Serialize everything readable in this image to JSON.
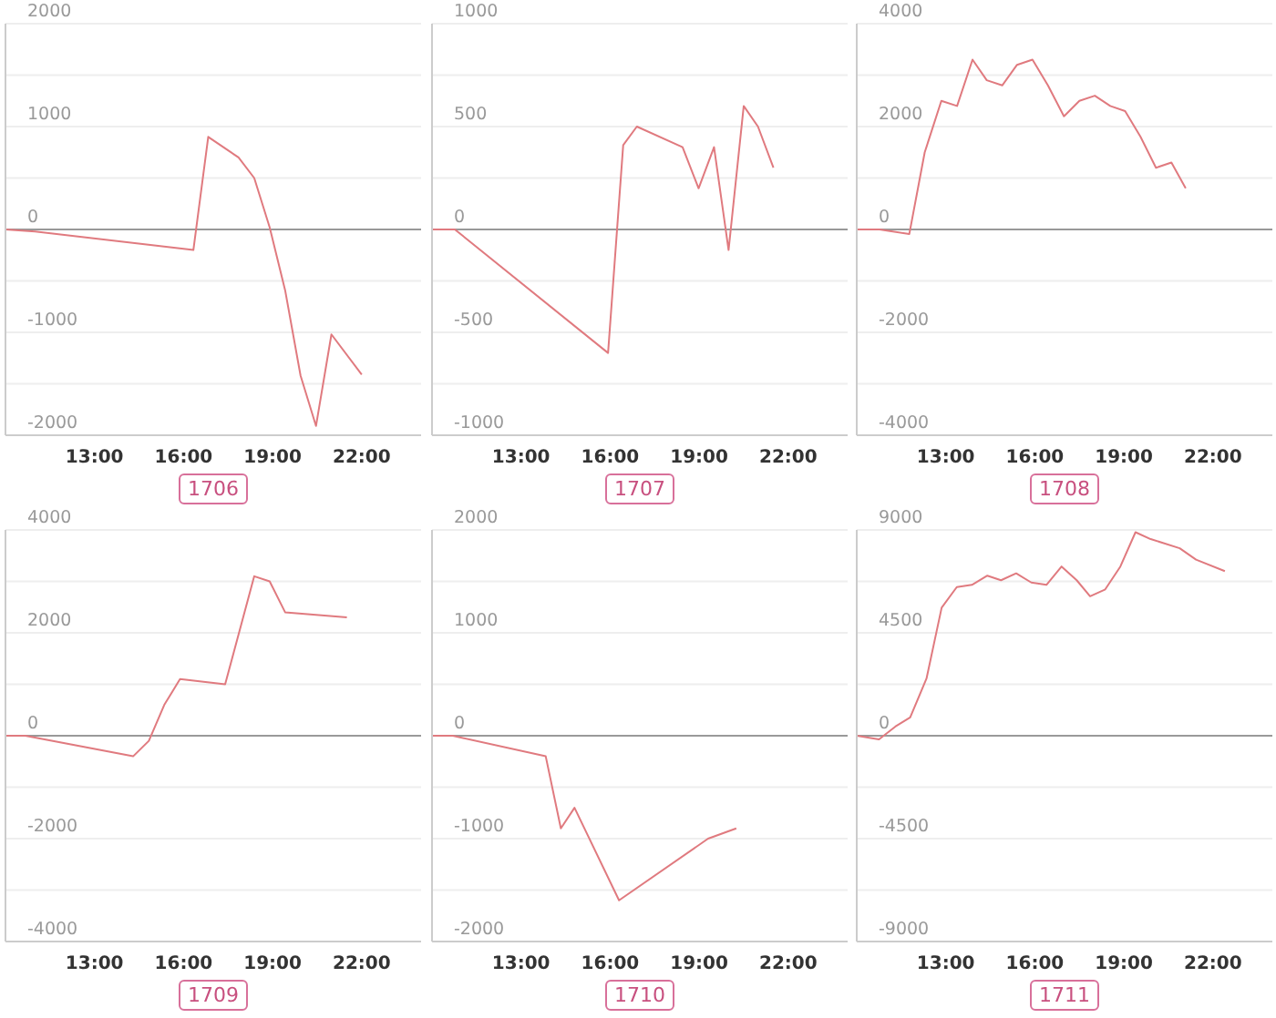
{
  "chart_data": [
    {
      "type": "line",
      "title": "1706",
      "color": "#e07a7f",
      "marker": "none",
      "grid": "y",
      "xlim": [
        10,
        24
      ],
      "xticks": [
        {
          "value": 13,
          "label": "13:00"
        },
        {
          "value": 16,
          "label": "16:00"
        },
        {
          "value": 19,
          "label": "19:00"
        },
        {
          "value": 22,
          "label": "22:00"
        }
      ],
      "ylim": [
        -2000,
        2000
      ],
      "yticks": [
        -2000,
        {
          "value": -1500,
          "label": null
        },
        -1000,
        {
          "value": -500,
          "label": null
        },
        0,
        {
          "value": 500,
          "label": null
        },
        1000,
        {
          "value": 1500,
          "label": null
        },
        2000
      ],
      "x": [
        10,
        11,
        16.33,
        16.83,
        17.85,
        18.38,
        18.9,
        19.42,
        19.94,
        20.46,
        20.98,
        22
      ],
      "values": [
        0,
        -20,
        -200,
        900,
        700,
        500,
        20,
        -590,
        -1420,
        -1910,
        -1020,
        -1410
      ]
    },
    {
      "type": "line",
      "title": "1707",
      "color": "#e07a7f",
      "marker": "none",
      "grid": "y",
      "xlim": [
        10,
        24
      ],
      "xticks": [
        {
          "value": 13,
          "label": "13:00"
        },
        {
          "value": 16,
          "label": "16:00"
        },
        {
          "value": 19,
          "label": "19:00"
        },
        {
          "value": 22,
          "label": "22:00"
        }
      ],
      "ylim": [
        -1000,
        1000
      ],
      "yticks": [
        -1000,
        {
          "value": -750,
          "label": null
        },
        -500,
        {
          "value": -250,
          "label": null
        },
        0,
        {
          "value": 250,
          "label": null
        },
        500,
        {
          "value": 750,
          "label": null
        },
        1000
      ],
      "x": [
        10,
        10.77,
        15.93,
        16.44,
        16.9,
        18.44,
        18.98,
        19.5,
        19.99,
        20.5,
        20.98,
        21.5
      ],
      "values": [
        0,
        0,
        -600,
        410,
        500,
        400,
        200,
        400,
        -100,
        600,
        500,
        300
      ]
    },
    {
      "type": "line",
      "title": "1708",
      "color": "#e07a7f",
      "marker": "none",
      "grid": "y",
      "xlim": [
        10,
        24
      ],
      "xticks": [
        {
          "value": 13,
          "label": "13:00"
        },
        {
          "value": 16,
          "label": "16:00"
        },
        {
          "value": 19,
          "label": "19:00"
        },
        {
          "value": 22,
          "label": "22:00"
        }
      ],
      "ylim": [
        -4000,
        4000
      ],
      "yticks": [
        -4000,
        {
          "value": -3000,
          "label": null
        },
        -2000,
        {
          "value": -1000,
          "label": null
        },
        0,
        {
          "value": 1000,
          "label": null
        },
        2000,
        {
          "value": 3000,
          "label": null
        },
        4000
      ],
      "x": [
        10,
        10.77,
        11.77,
        12.29,
        12.85,
        13.38,
        13.9,
        14.38,
        14.9,
        15.4,
        15.92,
        16.44,
        16.98,
        17.5,
        18.02,
        18.54,
        19.04,
        19.56,
        20.08,
        20.6,
        21.08
      ],
      "values": [
        0,
        0,
        -90,
        1500,
        2500,
        2400,
        3300,
        2900,
        2800,
        3200,
        3300,
        2800,
        2200,
        2500,
        2600,
        2400,
        2300,
        1800,
        1200,
        1300,
        800
      ]
    },
    {
      "type": "line",
      "title": "1709",
      "color": "#e07a7f",
      "marker": "none",
      "grid": "y",
      "xlim": [
        10,
        24
      ],
      "xticks": [
        {
          "value": 13,
          "label": "13:00"
        },
        {
          "value": 16,
          "label": "16:00"
        },
        {
          "value": 19,
          "label": "19:00"
        },
        {
          "value": 22,
          "label": "22:00"
        }
      ],
      "ylim": [
        -4000,
        4000
      ],
      "yticks": [
        -4000,
        {
          "value": -3000,
          "label": null
        },
        -2000,
        {
          "value": -1000,
          "label": null
        },
        0,
        {
          "value": 1000,
          "label": null
        },
        2000,
        {
          "value": 3000,
          "label": null
        },
        4000
      ],
      "x": [
        10,
        10.67,
        14.3,
        14.83,
        15.35,
        15.88,
        17.4,
        18.38,
        18.9,
        19.42,
        21.5
      ],
      "values": [
        0,
        0,
        -400,
        -100,
        600,
        1100,
        1000,
        3100,
        3000,
        2400,
        2300
      ]
    },
    {
      "type": "line",
      "title": "1710",
      "color": "#e07a7f",
      "marker": "none",
      "grid": "y",
      "xlim": [
        10,
        24
      ],
      "xticks": [
        {
          "value": 13,
          "label": "13:00"
        },
        {
          "value": 16,
          "label": "16:00"
        },
        {
          "value": 19,
          "label": "19:00"
        },
        {
          "value": 22,
          "label": "22:00"
        }
      ],
      "ylim": [
        -2000,
        2000
      ],
      "yticks": [
        -2000,
        {
          "value": -1500,
          "label": null
        },
        -1000,
        {
          "value": -500,
          "label": null
        },
        0,
        {
          "value": 500,
          "label": null
        },
        1000,
        {
          "value": 1500,
          "label": null
        },
        2000
      ],
      "x": [
        10,
        10.7,
        13.83,
        14.34,
        14.8,
        16.3,
        19.3,
        20.25
      ],
      "values": [
        0,
        0,
        -200,
        -900,
        -700,
        -1600,
        -1000,
        -900
      ]
    },
    {
      "type": "line",
      "title": "1711",
      "color": "#e07a7f",
      "marker": "none",
      "grid": "y",
      "xlim": [
        10,
        24
      ],
      "xticks": [
        {
          "value": 13,
          "label": "13:00"
        },
        {
          "value": 16,
          "label": "16:00"
        },
        {
          "value": 19,
          "label": "19:00"
        },
        {
          "value": 22,
          "label": "22:00"
        }
      ],
      "ylim": [
        -9000,
        9000
      ],
      "yticks": [
        -9000,
        {
          "value": -6750,
          "label": null
        },
        -4500,
        {
          "value": -2250,
          "label": null
        },
        0,
        {
          "value": 2250,
          "label": null
        },
        4500,
        {
          "value": 6750,
          "label": null
        },
        9000
      ],
      "x": [
        10,
        10.75,
        11.3,
        11.8,
        12.35,
        12.86,
        13.37,
        13.88,
        14.4,
        14.86,
        15.37,
        15.88,
        16.39,
        16.9,
        17.41,
        17.86,
        18.37,
        18.88,
        19.39,
        19.9,
        20.88,
        21.43,
        22.4
      ],
      "values": [
        0,
        -160,
        400,
        800,
        2500,
        5600,
        6500,
        6600,
        7000,
        6800,
        7100,
        6700,
        6600,
        7400,
        6800,
        6100,
        6400,
        7400,
        8900,
        8600,
        8200,
        7700,
        7200
      ]
    }
  ]
}
